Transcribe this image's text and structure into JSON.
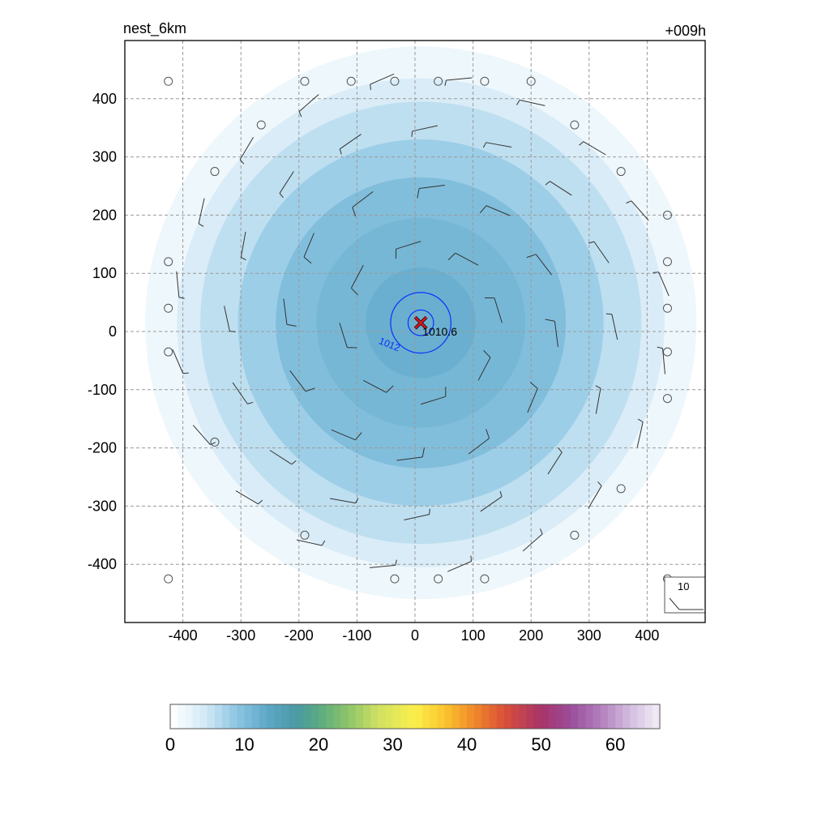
{
  "chart_data": {
    "type": "heatmap",
    "title": "nest_6km",
    "forecast_time": "+009h",
    "xlim": [
      -500,
      500
    ],
    "ylim": [
      -500,
      500
    ],
    "x_ticks": [
      -400,
      -300,
      -200,
      -100,
      0,
      100,
      200,
      300,
      400
    ],
    "y_ticks": [
      -400,
      -300,
      -200,
      -100,
      0,
      100,
      200,
      300,
      400
    ],
    "grid": true,
    "field": {
      "center": [
        10,
        15
      ],
      "filled_levels": [
        {
          "radius": 475,
          "value": 2
        },
        {
          "radius": 420,
          "value": 4
        },
        {
          "radius": 380,
          "value": 6
        },
        {
          "radius": 315,
          "value": 8
        },
        {
          "radius": 250,
          "value": 10
        },
        {
          "radius": 180,
          "value": 11
        },
        {
          "radius": 95,
          "value": 12
        }
      ]
    },
    "contours": [
      {
        "label": "1012",
        "radius": 52,
        "color": "#0a2fff"
      },
      {
        "label": "",
        "radius": 22,
        "color": "#0a2fff"
      }
    ],
    "center_marker": {
      "x": 10,
      "y": 15,
      "label": "1010.6",
      "color": "#e0141e"
    },
    "wind_barbs": {
      "reference_label": "10",
      "rings": [
        {
          "radius": 140,
          "count": 8,
          "speed": 10
        },
        {
          "radius": 240,
          "count": 12,
          "speed": 9
        },
        {
          "radius": 340,
          "count": 16,
          "speed": 7
        },
        {
          "radius": 430,
          "count": 20,
          "speed": 4
        }
      ],
      "calm_points": [
        [
          -425,
          430
        ],
        [
          -190,
          430
        ],
        [
          -110,
          430
        ],
        [
          -35,
          430
        ],
        [
          40,
          430
        ],
        [
          120,
          430
        ],
        [
          200,
          430
        ],
        [
          -265,
          355
        ],
        [
          275,
          355
        ],
        [
          -345,
          275
        ],
        [
          355,
          275
        ],
        [
          435,
          200
        ],
        [
          -425,
          120
        ],
        [
          435,
          120
        ],
        [
          -425,
          40
        ],
        [
          435,
          40
        ],
        [
          -425,
          -35
        ],
        [
          435,
          -35
        ],
        [
          435,
          -115
        ],
        [
          -345,
          -190
        ],
        [
          355,
          -270
        ],
        [
          -190,
          -350
        ],
        [
          275,
          -350
        ],
        [
          -425,
          -425
        ],
        [
          -35,
          -425
        ],
        [
          40,
          -425
        ],
        [
          120,
          -425
        ],
        [
          435,
          -425
        ]
      ]
    },
    "colorbar": {
      "min": 0,
      "max": 66,
      "tick_values": [
        0,
        10,
        20,
        30,
        40,
        50,
        60
      ],
      "tick_labels": [
        "0",
        "10",
        "20",
        "30",
        "40",
        "50",
        "60"
      ],
      "stops": [
        {
          "v": 0,
          "c": "#ffffff"
        },
        {
          "v": 2,
          "c": "#eef7fc"
        },
        {
          "v": 5,
          "c": "#cfe7f5"
        },
        {
          "v": 9,
          "c": "#8cc5e2"
        },
        {
          "v": 13,
          "c": "#5fa8c8"
        },
        {
          "v": 17,
          "c": "#4a99a4"
        },
        {
          "v": 20,
          "c": "#59aa82"
        },
        {
          "v": 24,
          "c": "#8dc46a"
        },
        {
          "v": 28,
          "c": "#cfe062"
        },
        {
          "v": 33,
          "c": "#fbef4c"
        },
        {
          "v": 37,
          "c": "#fbc52e"
        },
        {
          "v": 41,
          "c": "#f0882a"
        },
        {
          "v": 45,
          "c": "#da5038"
        },
        {
          "v": 50,
          "c": "#a8336a"
        },
        {
          "v": 54,
          "c": "#9a4d9a"
        },
        {
          "v": 58,
          "c": "#b27fbd"
        },
        {
          "v": 62,
          "c": "#d3bde0"
        },
        {
          "v": 66,
          "c": "#f4eef8"
        }
      ]
    }
  }
}
